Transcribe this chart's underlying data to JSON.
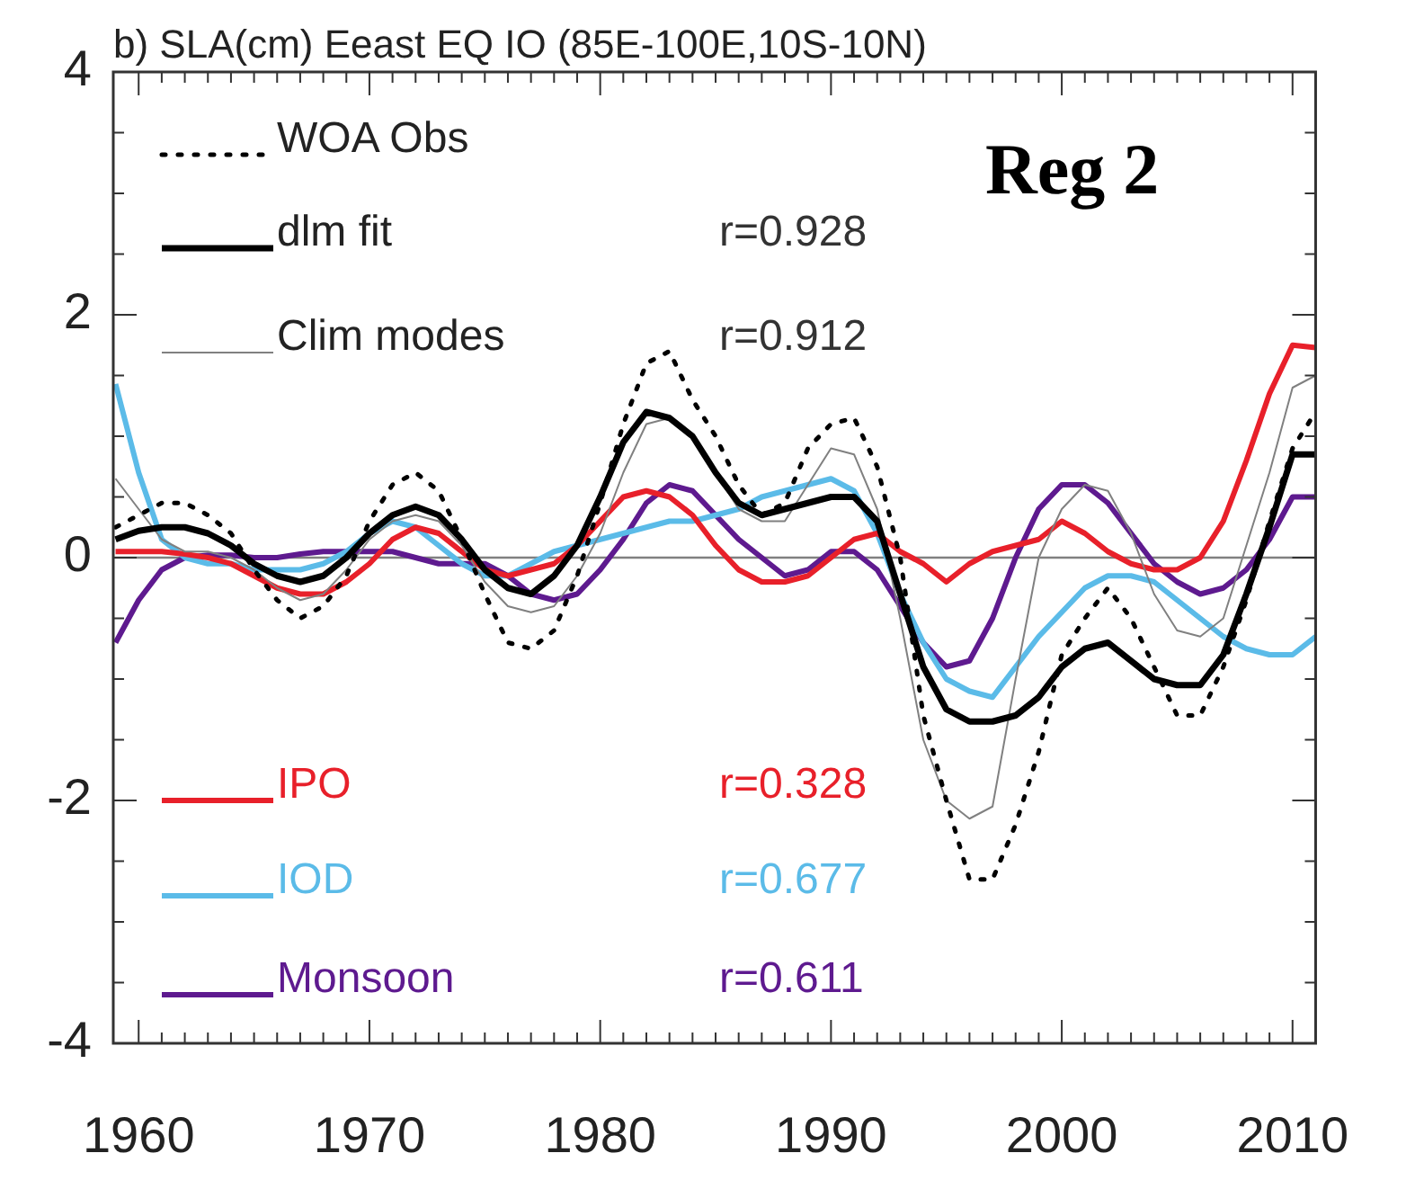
{
  "chart_data": {
    "type": "line",
    "title": "b) SLA(cm) Eeast EQ IO (85E-100E,10S-10N)",
    "x": [
      1959,
      1960,
      1961,
      1962,
      1963,
      1964,
      1965,
      1966,
      1967,
      1968,
      1969,
      1970,
      1971,
      1972,
      1973,
      1974,
      1975,
      1976,
      1977,
      1978,
      1979,
      1980,
      1981,
      1982,
      1983,
      1984,
      1985,
      1986,
      1987,
      1988,
      1989,
      1990,
      1991,
      1992,
      1993,
      1994,
      1995,
      1996,
      1997,
      1998,
      1999,
      2000,
      2001,
      2002,
      2003,
      2004,
      2005,
      2006,
      2007,
      2008,
      2009,
      2010,
      2011
    ],
    "series": [
      {
        "name": "WOA Obs",
        "color": "#000000",
        "line_style": "dotted",
        "values": [
          0.25,
          0.35,
          0.45,
          0.45,
          0.35,
          0.2,
          -0.1,
          -0.35,
          -0.5,
          -0.4,
          -0.15,
          0.3,
          0.6,
          0.7,
          0.55,
          0.15,
          -0.3,
          -0.7,
          -0.75,
          -0.6,
          -0.15,
          0.45,
          1.1,
          1.6,
          1.7,
          1.3,
          1.0,
          0.6,
          0.35,
          0.45,
          0.9,
          1.1,
          1.15,
          0.75,
          0.0,
          -1.3,
          -2.0,
          -2.65,
          -2.65,
          -2.2,
          -1.6,
          -0.8,
          -0.5,
          -0.25,
          -0.5,
          -0.9,
          -1.3,
          -1.3,
          -0.9,
          -0.35,
          0.3,
          0.9,
          1.2
        ]
      },
      {
        "name": "dlm fit",
        "color": "#000000",
        "values": [
          0.15,
          0.22,
          0.25,
          0.25,
          0.2,
          0.1,
          -0.05,
          -0.15,
          -0.2,
          -0.15,
          0.0,
          0.2,
          0.35,
          0.42,
          0.35,
          0.15,
          -0.1,
          -0.25,
          -0.3,
          -0.15,
          0.1,
          0.5,
          0.95,
          1.2,
          1.15,
          1.0,
          0.7,
          0.45,
          0.35,
          0.4,
          0.45,
          0.5,
          0.5,
          0.3,
          -0.3,
          -0.9,
          -1.25,
          -1.35,
          -1.35,
          -1.3,
          -1.15,
          -0.9,
          -0.75,
          -0.7,
          -0.85,
          -1.0,
          -1.05,
          -1.05,
          -0.8,
          -0.3,
          0.25,
          0.85,
          0.85
        ]
      },
      {
        "name": "Clim modes",
        "color": "#808080",
        "values": [
          0.65,
          0.4,
          0.15,
          0.05,
          0.05,
          0.0,
          -0.1,
          -0.25,
          -0.35,
          -0.3,
          -0.1,
          0.15,
          0.3,
          0.35,
          0.3,
          0.1,
          -0.2,
          -0.4,
          -0.45,
          -0.4,
          -0.15,
          0.2,
          0.7,
          1.1,
          1.15,
          1.0,
          0.7,
          0.4,
          0.3,
          0.3,
          0.6,
          0.9,
          0.85,
          0.4,
          -0.5,
          -1.5,
          -2.0,
          -2.15,
          -2.05,
          -1.0,
          0.0,
          0.4,
          0.6,
          0.55,
          0.2,
          -0.3,
          -0.6,
          -0.65,
          -0.5,
          0.1,
          0.7,
          1.4,
          1.5
        ]
      },
      {
        "name": "IPO",
        "color": "#e8202a",
        "values": [
          0.05,
          0.05,
          0.05,
          0.03,
          0.0,
          -0.05,
          -0.15,
          -0.25,
          -0.3,
          -0.3,
          -0.2,
          -0.05,
          0.15,
          0.25,
          0.2,
          0.05,
          -0.1,
          -0.15,
          -0.1,
          -0.05,
          0.1,
          0.3,
          0.5,
          0.55,
          0.5,
          0.35,
          0.1,
          -0.1,
          -0.2,
          -0.2,
          -0.15,
          0.0,
          0.15,
          0.2,
          0.05,
          -0.05,
          -0.2,
          -0.05,
          0.05,
          0.1,
          0.15,
          0.3,
          0.2,
          0.05,
          -0.05,
          -0.1,
          -0.1,
          0.0,
          0.3,
          0.8,
          1.35,
          1.75,
          1.73
        ]
      },
      {
        "name": "IOD",
        "color": "#5bbbe8",
        "values": [
          1.43,
          0.7,
          0.15,
          0.0,
          -0.05,
          -0.05,
          -0.1,
          -0.1,
          -0.1,
          -0.05,
          0.05,
          0.2,
          0.3,
          0.25,
          0.1,
          -0.05,
          -0.15,
          -0.15,
          -0.05,
          0.05,
          0.1,
          0.15,
          0.2,
          0.25,
          0.3,
          0.3,
          0.35,
          0.4,
          0.5,
          0.55,
          0.6,
          0.65,
          0.55,
          0.2,
          -0.3,
          -0.7,
          -1.0,
          -1.1,
          -1.15,
          -0.9,
          -0.65,
          -0.45,
          -0.25,
          -0.15,
          -0.15,
          -0.2,
          -0.35,
          -0.5,
          -0.65,
          -0.75,
          -0.8,
          -0.8,
          -0.65
        ]
      },
      {
        "name": "Monsoon",
        "color": "#5e1a8f",
        "values": [
          -0.7,
          -0.35,
          -0.1,
          0.0,
          0.02,
          0.02,
          0.0,
          0.0,
          0.03,
          0.05,
          0.05,
          0.05,
          0.05,
          0.0,
          -0.05,
          -0.05,
          -0.05,
          -0.15,
          -0.3,
          -0.35,
          -0.3,
          -0.1,
          0.15,
          0.45,
          0.6,
          0.55,
          0.35,
          0.15,
          0.0,
          -0.15,
          -0.1,
          0.05,
          0.05,
          -0.1,
          -0.4,
          -0.7,
          -0.9,
          -0.85,
          -0.5,
          0.0,
          0.4,
          0.6,
          0.6,
          0.45,
          0.2,
          -0.05,
          -0.2,
          -0.3,
          -0.25,
          -0.1,
          0.15,
          0.5,
          0.5
        ]
      }
    ],
    "xlim": [
      1958.9,
      2011
    ],
    "xticks": [
      1960,
      {
        "value": 1961,
        "label": null
      },
      {
        "value": 1962,
        "label": null
      },
      {
        "value": 1963,
        "label": null
      },
      {
        "value": 1964,
        "label": null
      },
      {
        "value": 1965,
        "label": null
      },
      {
        "value": 1966,
        "label": null
      },
      {
        "value": 1967,
        "label": null
      },
      {
        "value": 1968,
        "label": null
      },
      {
        "value": 1969,
        "label": null
      },
      1970,
      {
        "value": 1971,
        "label": null
      },
      {
        "value": 1972,
        "label": null
      },
      {
        "value": 1973,
        "label": null
      },
      {
        "value": 1974,
        "label": null
      },
      {
        "value": 1975,
        "label": null
      },
      {
        "value": 1976,
        "label": null
      },
      {
        "value": 1977,
        "label": null
      },
      {
        "value": 1978,
        "label": null
      },
      {
        "value": 1979,
        "label": null
      },
      1980,
      {
        "value": 1981,
        "label": null
      },
      {
        "value": 1982,
        "label": null
      },
      {
        "value": 1983,
        "label": null
      },
      {
        "value": 1984,
        "label": null
      },
      {
        "value": 1985,
        "label": null
      },
      {
        "value": 1986,
        "label": null
      },
      {
        "value": 1987,
        "label": null
      },
      {
        "value": 1988,
        "label": null
      },
      {
        "value": 1989,
        "label": null
      },
      1990,
      {
        "value": 1991,
        "label": null
      },
      {
        "value": 1992,
        "label": null
      },
      {
        "value": 1993,
        "label": null
      },
      {
        "value": 1994,
        "label": null
      },
      {
        "value": 1995,
        "label": null
      },
      {
        "value": 1996,
        "label": null
      },
      {
        "value": 1997,
        "label": null
      },
      {
        "value": 1998,
        "label": null
      },
      {
        "value": 1999,
        "label": null
      },
      2000,
      {
        "value": 2001,
        "label": null
      },
      {
        "value": 2002,
        "label": null
      },
      {
        "value": 2003,
        "label": null
      },
      {
        "value": 2004,
        "label": null
      },
      {
        "value": 2005,
        "label": null
      },
      {
        "value": 2006,
        "label": null
      },
      {
        "value": 2007,
        "label": null
      },
      {
        "value": 2008,
        "label": null
      },
      {
        "value": 2009,
        "label": null
      },
      2010
    ],
    "ylim": [
      -4,
      4
    ],
    "yticks": [
      -4,
      {
        "value": -3.5,
        "label": null
      },
      {
        "value": -3,
        "label": null
      },
      {
        "value": -2.5,
        "label": null
      },
      -2,
      {
        "value": -1.5,
        "label": null
      },
      {
        "value": -1,
        "label": null
      },
      {
        "value": -0.5,
        "label": null
      },
      0,
      {
        "value": 0.5,
        "label": null
      },
      {
        "value": 1,
        "label": null
      },
      {
        "value": 1.5,
        "label": null
      },
      2,
      {
        "value": 2.5,
        "label": null
      },
      {
        "value": 3,
        "label": null
      },
      {
        "value": 3.5,
        "label": null
      },
      4
    ],
    "ref_lines": [
      {
        "axis": "y",
        "value": 0,
        "color": "#808080"
      }
    ],
    "grid": false,
    "legend": "left",
    "marker": "none",
    "annotations": [
      "Reg 2",
      "r=0.928",
      "r=0.912",
      "r=0.328",
      "r=0.677",
      "r=0.611"
    ]
  }
}
